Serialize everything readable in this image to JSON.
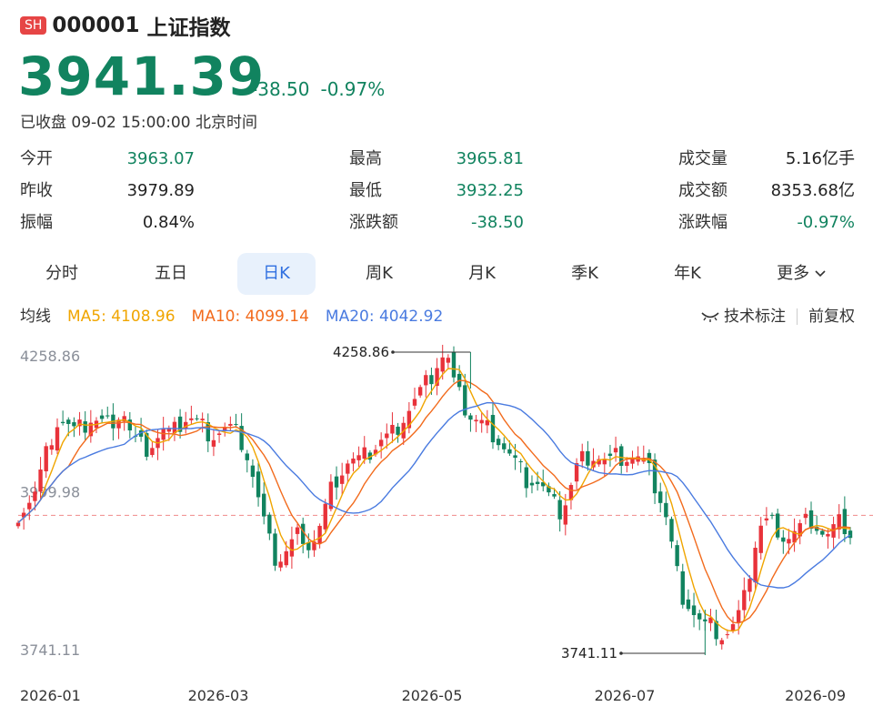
{
  "header": {
    "market_badge": "SH",
    "code": "000001",
    "name": "上证指数",
    "price": "3941.39",
    "change": "-38.50",
    "change_pct": "-0.97%",
    "status": "已收盘 09-02 15:00:00 北京时间"
  },
  "stats": [
    [
      {
        "label": "今开",
        "value": "3963.07",
        "color": "green"
      },
      {
        "label": "最高",
        "value": "3965.81",
        "color": "green"
      },
      {
        "label": "成交量",
        "value": "5.16亿手",
        "color": "normal"
      }
    ],
    [
      {
        "label": "昨收",
        "value": "3979.89",
        "color": "normal"
      },
      {
        "label": "最低",
        "value": "3932.25",
        "color": "green"
      },
      {
        "label": "成交额",
        "value": "8353.68亿",
        "color": "normal"
      }
    ],
    [
      {
        "label": "振幅",
        "value": "0.84%",
        "color": "normal"
      },
      {
        "label": "涨跌额",
        "value": "-38.50",
        "color": "green"
      },
      {
        "label": "涨跌幅",
        "value": "-0.97%",
        "color": "green"
      }
    ]
  ],
  "tabs": [
    "分时",
    "五日",
    "日K",
    "周K",
    "月K",
    "季K",
    "年K",
    "更多"
  ],
  "active_tab": "日K",
  "ma": {
    "label": "均线",
    "ma5": "MA5: 4108.96",
    "ma10": "MA10: 4099.14",
    "ma20": "MA20: 4042.92"
  },
  "tools": {
    "indicator": "技术标注",
    "adjust": "前复权"
  },
  "colors": {
    "up": "#e8323a",
    "down": "#11835f",
    "ma5": "#f0a500",
    "ma10": "#f26b1d",
    "ma20": "#4a7be0",
    "active_tab_bg": "#e8f1fc",
    "active_tab_text": "#2f6fe0"
  },
  "chart_data": {
    "type": "candlestick",
    "y_top_label": "4258.86",
    "y_mid_label": "3999.98",
    "y_bottom_label": "3741.11",
    "ylim": [
      3741.11,
      4258.86
    ],
    "reference_line": 3979.89,
    "max_marker": "4258.86",
    "min_marker": "3741.11",
    "x_ticks": [
      "2026-01",
      "2026-03",
      "2026-05",
      "2026-07",
      "2026-09"
    ],
    "close_path": [
      3985,
      4000,
      4015,
      4060,
      4110,
      4145,
      4135,
      4120,
      4130,
      4145,
      4140,
      4135,
      4150,
      4160,
      4115,
      4100,
      4095,
      4110,
      4125,
      4115,
      4135,
      4150,
      4140,
      4130,
      4118,
      4125,
      4130,
      4120,
      4100,
      4050,
      3990,
      3935,
      3900,
      3915,
      3935,
      3955,
      3930,
      3945,
      3990,
      4035,
      4055,
      4075,
      4070,
      4080,
      4095,
      4110,
      4115,
      4135,
      4155,
      4175,
      4195,
      4215,
      4245,
      4258,
      4200,
      4170,
      4150,
      4140,
      4130,
      4120,
      4100,
      4080,
      4060,
      4040,
      4040,
      4025,
      4000,
      3985,
      4010,
      4060,
      4080,
      4085,
      4080,
      4070,
      4080,
      4080,
      4080,
      4075,
      4055,
      4025,
      3990,
      3920,
      3850,
      3830,
      3805,
      3790,
      3790,
      3775,
      3780,
      3800,
      3840,
      3920,
      3965,
      3970,
      3960,
      3940,
      3950,
      3960,
      3975,
      3960,
      3940,
      3955,
      3970,
      3941
    ]
  }
}
